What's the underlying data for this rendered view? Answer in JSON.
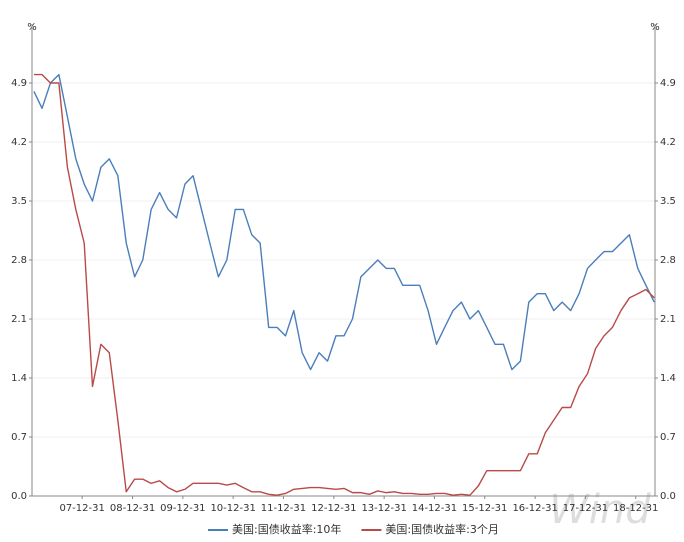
{
  "chart_data": {
    "type": "line",
    "y_unit": "%",
    "y2_unit": "%",
    "watermark": "Wind",
    "x": [
      "07-01-15",
      "07-03-15",
      "07-05-15",
      "07-07-15",
      "07-09-15",
      "07-11-15",
      "08-01-15",
      "08-03-15",
      "08-05-15",
      "08-07-15",
      "08-09-15",
      "08-11-15",
      "09-01-15",
      "09-03-15",
      "09-05-15",
      "09-07-15",
      "09-09-15",
      "09-11-15",
      "10-01-15",
      "10-03-15",
      "10-05-15",
      "10-07-15",
      "10-09-15",
      "10-11-15",
      "11-01-15",
      "11-03-15",
      "11-05-15",
      "11-07-15",
      "11-09-15",
      "11-11-15",
      "12-01-15",
      "12-03-15",
      "12-05-15",
      "12-07-15",
      "12-09-15",
      "12-11-15",
      "13-01-15",
      "13-03-15",
      "13-05-15",
      "13-07-15",
      "13-09-15",
      "13-11-15",
      "14-01-15",
      "14-03-15",
      "14-05-15",
      "14-07-15",
      "14-09-15",
      "14-11-15",
      "15-01-15",
      "15-03-15",
      "15-05-15",
      "15-07-15",
      "15-09-15",
      "15-11-15",
      "16-01-15",
      "16-03-15",
      "16-05-15",
      "16-07-15",
      "16-09-15",
      "16-11-15",
      "17-01-15",
      "17-03-15",
      "17-05-15",
      "17-07-15",
      "17-09-15",
      "17-11-15",
      "18-01-15",
      "18-03-15",
      "18-05-15",
      "18-07-15",
      "18-09-15",
      "18-11-15",
      "19-01-15",
      "19-03-15",
      "19-05-15"
    ],
    "series": [
      {
        "name": "美国:国债收益率:10年",
        "color": "#4a7ebb",
        "values": [
          4.8,
          4.6,
          4.9,
          5.0,
          4.5,
          4.0,
          3.7,
          3.5,
          3.9,
          4.0,
          3.8,
          3.0,
          2.6,
          2.8,
          3.4,
          3.6,
          3.4,
          3.3,
          3.7,
          3.8,
          3.4,
          3.0,
          2.6,
          2.8,
          3.4,
          3.4,
          3.1,
          3.0,
          2.0,
          2.0,
          1.9,
          2.2,
          1.7,
          1.5,
          1.7,
          1.6,
          1.9,
          1.9,
          2.1,
          2.6,
          2.7,
          2.8,
          2.7,
          2.7,
          2.5,
          2.5,
          2.5,
          2.2,
          1.8,
          2.0,
          2.2,
          2.3,
          2.1,
          2.2,
          2.0,
          1.8,
          1.8,
          1.5,
          1.6,
          2.3,
          2.4,
          2.4,
          2.2,
          2.3,
          2.2,
          2.4,
          2.7,
          2.8,
          2.9,
          2.9,
          3.0,
          3.1,
          2.7,
          2.5,
          2.3
        ]
      },
      {
        "name": "美国:国债收益率:3个月",
        "color": "#b94a48",
        "values": [
          5.0,
          5.0,
          4.9,
          4.9,
          3.9,
          3.4,
          3.0,
          1.3,
          1.8,
          1.7,
          0.9,
          0.05,
          0.2,
          0.2,
          0.15,
          0.18,
          0.1,
          0.05,
          0.08,
          0.15,
          0.15,
          0.15,
          0.15,
          0.13,
          0.15,
          0.1,
          0.05,
          0.05,
          0.02,
          0.01,
          0.03,
          0.08,
          0.09,
          0.1,
          0.1,
          0.09,
          0.08,
          0.09,
          0.04,
          0.04,
          0.02,
          0.06,
          0.04,
          0.05,
          0.03,
          0.03,
          0.02,
          0.02,
          0.03,
          0.03,
          0.01,
          0.02,
          0.01,
          0.12,
          0.3,
          0.3,
          0.3,
          0.3,
          0.3,
          0.5,
          0.5,
          0.75,
          0.9,
          1.05,
          1.05,
          1.3,
          1.45,
          1.75,
          1.9,
          2.0,
          2.2,
          2.35,
          2.4,
          2.45,
          2.35
        ]
      }
    ],
    "xlim": [
      "07-01-01",
      "19-05-20"
    ],
    "xticks": [
      "07-12-31",
      "08-12-31",
      "09-12-31",
      "10-12-31",
      "11-12-31",
      "12-12-31",
      "13-12-31",
      "14-12-31",
      "15-12-31",
      "16-12-31",
      "17-12-31",
      "18-12-31"
    ],
    "ylim": [
      0,
      5.6
    ],
    "yticks": [
      {
        "value": 0,
        "label": "0.0"
      },
      0.7,
      1.4,
      2.1,
      2.8,
      3.5,
      4.2,
      4.9
    ],
    "y2lim": [
      0,
      5.6
    ],
    "y2ticks": [
      {
        "value": 0,
        "label": "0.0"
      },
      0.7,
      1.4,
      2.1,
      2.8,
      3.5,
      4.2,
      4.9
    ],
    "grid": true
  }
}
